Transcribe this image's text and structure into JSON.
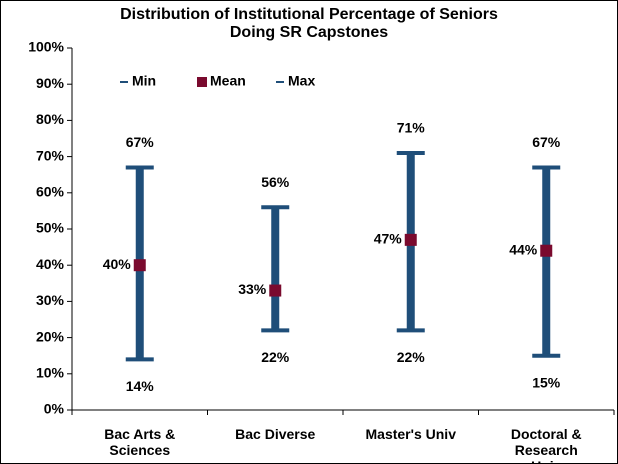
{
  "chart_data": {
    "type": "range",
    "title": "Distribution of Institutional Percentage of Seniors Doing SR Capstones",
    "categories": [
      "Bac Arts & Sciences",
      "Bac Diverse",
      "Master's Univ",
      "Doctoral & Research Univ"
    ],
    "series": [
      {
        "name": "Min",
        "color": "#1f4e79",
        "values": [
          14,
          22,
          22,
          15
        ],
        "value_labels": [
          "14%",
          "22%",
          "22%",
          "15%"
        ]
      },
      {
        "name": "Mean",
        "color": "#7a0a2e",
        "values": [
          40,
          33,
          47,
          44
        ],
        "value_labels": [
          "40%",
          "33%",
          "47%",
          "44%"
        ]
      },
      {
        "name": "Max",
        "color": "#1f4e79",
        "values": [
          67,
          56,
          71,
          67
        ],
        "value_labels": [
          "67%",
          "56%",
          "71%",
          "67%"
        ]
      }
    ],
    "ylim": [
      0,
      100
    ],
    "yticks": [
      {
        "value": 0,
        "label": "0%"
      },
      {
        "value": 10,
        "label": "10%"
      },
      {
        "value": 20,
        "label": "20%"
      },
      {
        "value": 30,
        "label": "30%"
      },
      {
        "value": 40,
        "label": "40%"
      },
      {
        "value": 50,
        "label": "50%"
      },
      {
        "value": 60,
        "label": "60%"
      },
      {
        "value": 70,
        "label": "70%"
      },
      {
        "value": 80,
        "label": "80%"
      },
      {
        "value": 90,
        "label": "90%"
      },
      {
        "value": 100,
        "label": "100%"
      }
    ],
    "legend": "top-left",
    "grid": false
  }
}
